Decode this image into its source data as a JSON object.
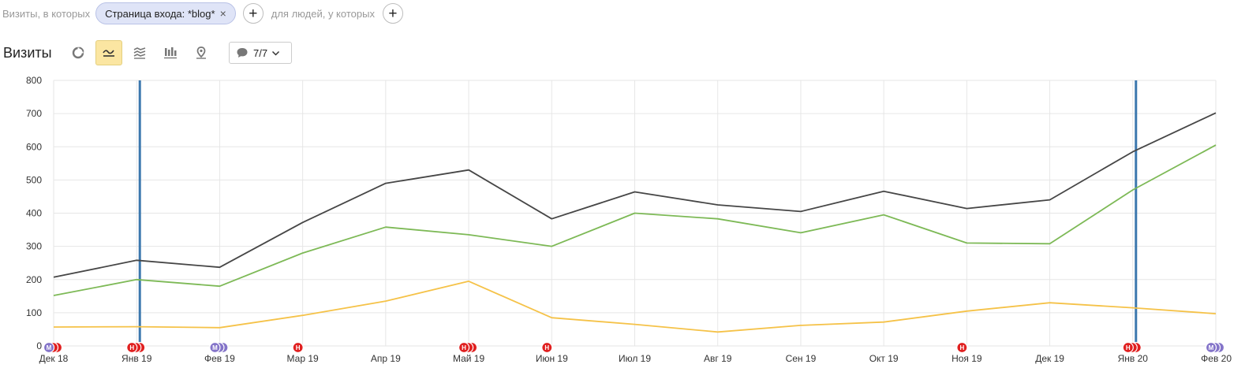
{
  "filters": {
    "visits_condition_label": "Визиты, в которых",
    "chip_label": "Страница входа: *blog*",
    "people_condition_label": "для людей, у которых",
    "add_symbol": "+",
    "close_symbol": "×"
  },
  "toolbar": {
    "title": "Визиты",
    "buttons": [
      "pie-chart-icon",
      "line-chart-icon",
      "area-chart-icon",
      "bar-chart-icon",
      "map-icon"
    ],
    "active_button": "line-chart-icon",
    "notes_label": "7/7"
  },
  "colors": {
    "total": "#464646",
    "green": "#7db956",
    "yellow": "#f5c248",
    "vline": "#3c78ae",
    "marker_red": "#e02020",
    "marker_purple": "#8474c9",
    "active_button": "#fbe6a2"
  },
  "chart_data": {
    "type": "line",
    "categories": [
      "Дек 18",
      "Янв 19",
      "Фев 19",
      "Мар 19",
      "Апр 19",
      "Май 19",
      "Июн 19",
      "Июл 19",
      "Авг 19",
      "Сен 19",
      "Окт 19",
      "Ноя 19",
      "Дек 19",
      "Янв 20",
      "Фев 20"
    ],
    "series": [
      {
        "color": "#464646",
        "values": [
          207,
          258,
          237,
          372,
          490,
          530,
          383,
          464,
          425,
          405,
          466,
          414,
          440,
          585,
          702
        ]
      },
      {
        "color": "#7db956",
        "values": [
          152,
          200,
          180,
          280,
          358,
          335,
          300,
          400,
          383,
          341,
          395,
          310,
          308,
          470,
          605
        ]
      },
      {
        "color": "#f5c248",
        "values": [
          57,
          58,
          55,
          92,
          135,
          195,
          85,
          65,
          42,
          62,
          72,
          105,
          130,
          115,
          97
        ]
      }
    ],
    "ylim": [
      0,
      800
    ],
    "yticks": [
      0,
      100,
      200,
      300,
      400,
      500,
      600,
      700,
      800
    ],
    "grid": true,
    "vertical_markers_at": [
      "Янв 19",
      "Янв 20"
    ],
    "annotations": [
      {
        "category": "Дек 18",
        "markers": [
          "М",
          "Н",
          "Н"
        ]
      },
      {
        "category": "Янв 19",
        "markers": [
          "Н",
          "Н",
          "Н"
        ]
      },
      {
        "category": "Фев 19",
        "markers": [
          "М",
          "М",
          "М"
        ]
      },
      {
        "category": "Мар 19",
        "markers": [
          "Н"
        ]
      },
      {
        "category": "Май 19",
        "markers": [
          "Н",
          "Н",
          "Н"
        ]
      },
      {
        "category": "Июн 19",
        "markers": [
          "Н"
        ]
      },
      {
        "category": "Ноя 19",
        "markers": [
          "Н"
        ]
      },
      {
        "category": "Янв 20",
        "markers": [
          "Н",
          "Н",
          "Н"
        ]
      },
      {
        "category": "Фев 20",
        "markers": [
          "М",
          "М",
          "М"
        ]
      }
    ]
  }
}
